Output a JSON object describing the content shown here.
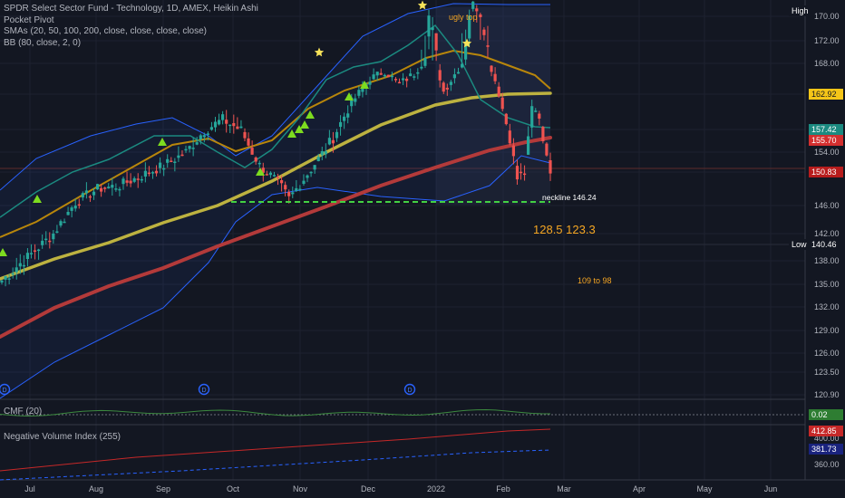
{
  "legend": {
    "title": "SPDR Select Sector Fund - Technology, 1D, AMEX, Heikin Ashi",
    "indicators": [
      "Pocket Pivot",
      "SMAs (20, 50, 100, 200, close, close, close, close)",
      "BB (80, close, 2, 0)"
    ]
  },
  "panes": {
    "cmf_label": "CMF (20)",
    "nvi_label": "Negative Volume Index (255)"
  },
  "colors": {
    "background": "#131722",
    "up": "#26a69a",
    "down": "#ef5350",
    "bb": "#2962ff",
    "sma20": "#1b8a80",
    "sma50": "#b8860b",
    "sma100": "#bdb240",
    "sma200": "#b33a3a",
    "neckline": "#43d143",
    "annotation": "#f5a623",
    "star": "#f7e35a",
    "pivot_marker": "#7ddc1f"
  },
  "chart_data": {
    "type": "candlestick",
    "x_axis_labels": [
      "Jul",
      "Aug",
      "Sep",
      "Oct",
      "Nov",
      "Dec",
      "2022",
      "Feb",
      "Mar",
      "Apr",
      "May",
      "Jun"
    ],
    "y_axis_labels": [
      "170.00",
      "172.00",
      "168.00",
      "162.00",
      "157.42",
      "155.70",
      "154.00",
      "150.83",
      "146.00",
      "142.00",
      "140.46",
      "138.00",
      "135.00",
      "132.00",
      "129.00",
      "126.00",
      "123.50",
      "120.90"
    ],
    "price_tags": [
      {
        "label": "High",
        "value": "",
        "style": "high"
      },
      {
        "value": "162.92",
        "style": "sma-gold"
      },
      {
        "value": "157.42",
        "style": "teal"
      },
      {
        "value": "155.70",
        "style": "red"
      },
      {
        "value": "150.83",
        "style": "red-dark"
      },
      {
        "label": "Low",
        "value": "140.46",
        "style": "low"
      }
    ],
    "annotations": [
      {
        "text": "ugly top"
      },
      {
        "text": "neckline 146.24"
      },
      {
        "text": "128.5  123.3"
      },
      {
        "text": "109 to 98"
      }
    ],
    "neckline_value": 146.24,
    "close_approx": 150.83,
    "high_approx": 170.9,
    "low_approx": 140.46,
    "cmf": {
      "value_tag": "0.02",
      "range": [
        -0.3,
        0.3
      ]
    },
    "nvi": {
      "y_axis_labels": [
        "400.00",
        "380.00",
        "360.00"
      ],
      "tags": [
        "412.85",
        "381.73"
      ]
    }
  }
}
